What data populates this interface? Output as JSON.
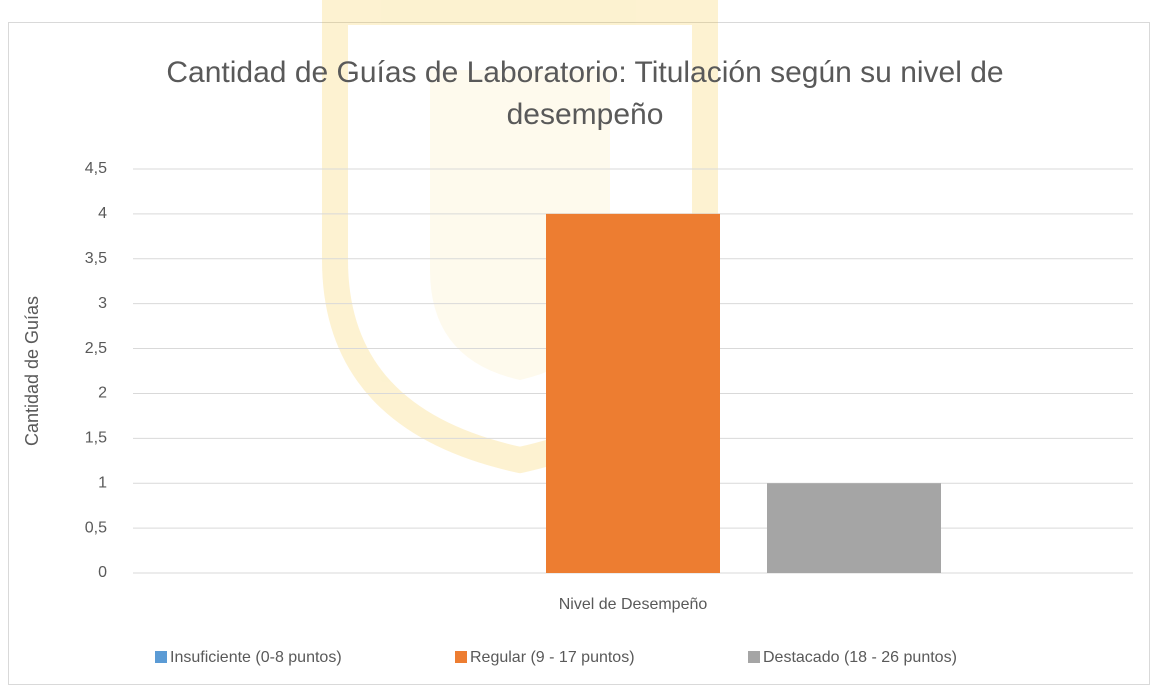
{
  "chart_data": {
    "type": "bar",
    "title": "Cantidad de Guías de Laboratorio: Titulación según su nivel de desempeño",
    "y_label": "Cantidad de Guías",
    "categories": [
      "Nivel de Desempeño"
    ],
    "series": [
      {
        "name": "Insuficiente (0-8 puntos)",
        "color": "#5b9bd5",
        "values": [
          0
        ]
      },
      {
        "name": "Regular (9 - 17 puntos)",
        "color": "#ed7d31",
        "values": [
          4
        ]
      },
      {
        "name": "Destacado (18 - 26 puntos)",
        "color": "#a5a5a5",
        "values": [
          1
        ]
      }
    ],
    "ylim": [
      0,
      4.5
    ],
    "yticks": [
      0,
      {
        "value": 0.5,
        "label": "0,5"
      },
      1,
      {
        "value": 1.5,
        "label": "1,5"
      },
      2,
      {
        "value": 2.5,
        "label": "2,5"
      },
      3,
      {
        "value": 3.5,
        "label": "3,5"
      },
      4,
      {
        "value": 4.5,
        "label": "4,5"
      }
    ],
    "grid": true,
    "legend": "bottom"
  }
}
